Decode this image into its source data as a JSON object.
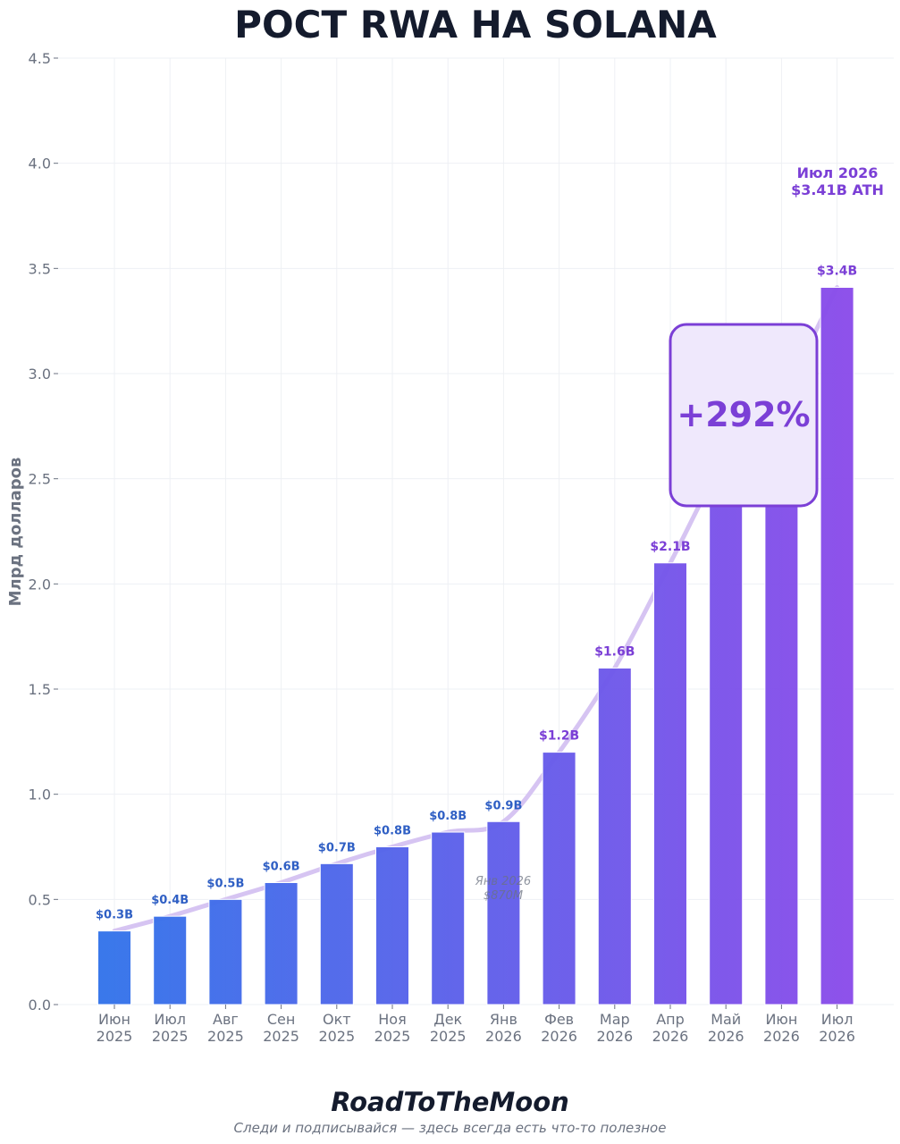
{
  "chart_data": {
    "type": "bar",
    "title": "РОСТ RWA НА SOLANA",
    "ylabel": "Млрд долларов",
    "xlabel": "",
    "ylim": [
      0,
      4.5
    ],
    "yticks": [
      "0.0",
      "0.5",
      "1.0",
      "1.5",
      "2.0",
      "2.5",
      "3.0",
      "3.5",
      "4.0",
      "4.5"
    ],
    "grid": true,
    "categories": [
      [
        "Июн",
        "2025"
      ],
      [
        "Июл",
        "2025"
      ],
      [
        "Авг",
        "2025"
      ],
      [
        "Сен",
        "2025"
      ],
      [
        "Окт",
        "2025"
      ],
      [
        "Ноя",
        "2025"
      ],
      [
        "Дек",
        "2025"
      ],
      [
        "Янв",
        "2026"
      ],
      [
        "Фев",
        "2026"
      ],
      [
        "Мар",
        "2026"
      ],
      [
        "Апр",
        "2026"
      ],
      [
        "Май",
        "2026"
      ],
      [
        "Июн",
        "2026"
      ],
      [
        "Июл",
        "2026"
      ]
    ],
    "values": [
      0.35,
      0.42,
      0.5,
      0.58,
      0.67,
      0.75,
      0.82,
      0.87,
      1.2,
      1.6,
      2.1,
      2.6,
      2.9,
      3.41
    ],
    "data_labels": [
      "$0.3B",
      "$0.4B",
      "$0.5B",
      "$0.6B",
      "$0.7B",
      "$0.8B",
      "$0.8B",
      "$0.9B",
      "$1.2B",
      "$1.6B",
      "$2.1B",
      "",
      "",
      "$3.4B"
    ],
    "colors": {
      "bar_start": "#3374ea",
      "bar_end": "#8b4cea",
      "label_blue": "#2f5fc4",
      "label_purple": "#7b3fd6",
      "trend_line": "#d6c4f2",
      "axis_text": "#6b7280",
      "grid": "#eef0f4",
      "title": "#141b2d"
    },
    "annotations": {
      "growth_badge": "+292%",
      "ath_line1": "Июл 2026",
      "ath_line2": "$3.41B ATH",
      "faint_line1": "Янв 2026",
      "faint_line2": "$870M"
    }
  },
  "footer": {
    "brand": "RoadToTheMoon",
    "subtitle": "Следи и подписывайся — здесь всегда есть что-то полезное"
  }
}
